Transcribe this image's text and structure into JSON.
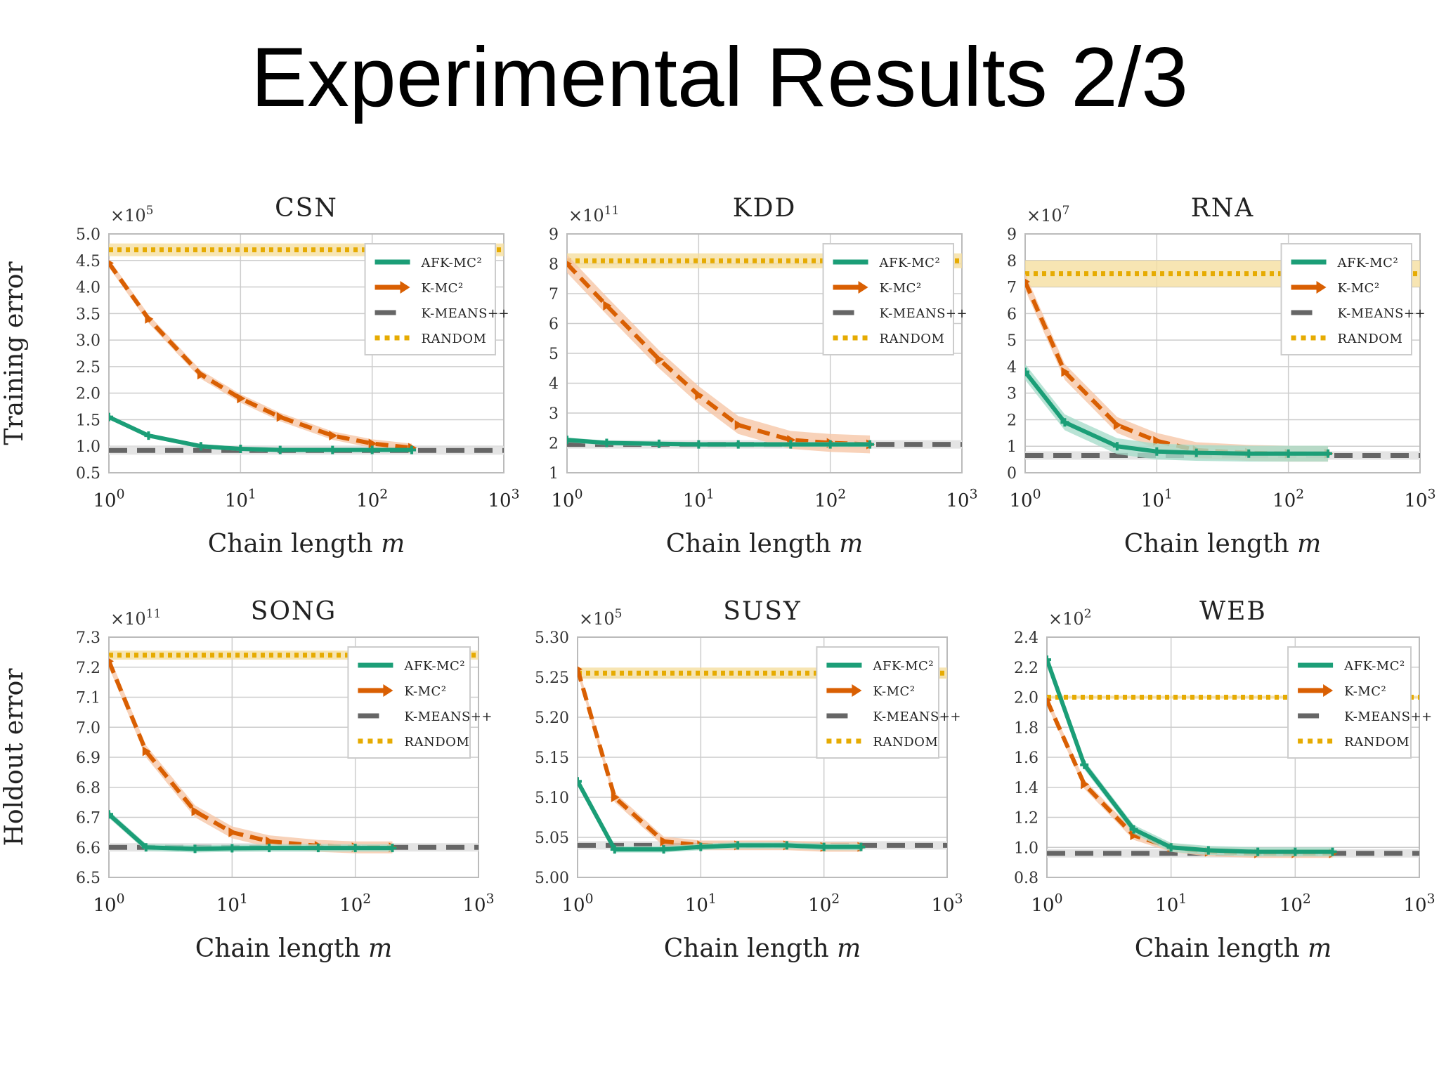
{
  "slide": {
    "title": "Experimental Results 2/3"
  },
  "colors": {
    "afk": "#1b9e77",
    "kmc": "#d95f02",
    "kmeans": "#666666",
    "random": "#e6ab02",
    "random_band": "#f5dfa0",
    "kmc_band": "#f6c7a8",
    "afk_band": "#a8dccb",
    "grid": "#cccccc"
  },
  "chart_data": [
    {
      "type": "line",
      "title": "CSN",
      "ylabel": "Training error",
      "xlabel": "Chain length m",
      "xscale": "log",
      "xlim": [
        1,
        1000
      ],
      "xticks": [
        "10^0",
        "10^1",
        "10^2",
        "10^3"
      ],
      "multiplier": "×10^5",
      "ylim": [
        0.5,
        5.0
      ],
      "yticks": [
        "0.5",
        "1.0",
        "1.5",
        "2.0",
        "2.5",
        "3.0",
        "3.5",
        "4.0",
        "4.5",
        "5.0"
      ],
      "legend_position": "top-right",
      "series": [
        {
          "name": "AFK-MC²",
          "x": [
            1,
            2,
            5,
            10,
            20,
            50,
            100,
            200
          ],
          "y": [
            1.55,
            1.2,
            1.0,
            0.95,
            0.93,
            0.93,
            0.93,
            0.93
          ],
          "band": 0.04
        },
        {
          "name": "K-MC²",
          "x": [
            1,
            2,
            5,
            10,
            20,
            50,
            100,
            200
          ],
          "y": [
            4.45,
            3.4,
            2.35,
            1.9,
            1.55,
            1.2,
            1.05,
            0.97
          ],
          "band": 0.08
        },
        {
          "name": "K-MEANS++",
          "y": 0.92,
          "band": 0.03
        },
        {
          "name": "RANDOM",
          "y": 4.7,
          "band": 0.12
        }
      ]
    },
    {
      "type": "line",
      "title": "KDD",
      "ylabel": "",
      "xlabel": "Chain length m",
      "xscale": "log",
      "xlim": [
        1,
        1000
      ],
      "xticks": [
        "10^0",
        "10^1",
        "10^2",
        "10^3"
      ],
      "multiplier": "×10^11",
      "ylim": [
        1,
        9
      ],
      "yticks": [
        "1",
        "2",
        "3",
        "4",
        "5",
        "6",
        "7",
        "8",
        "9"
      ],
      "legend_position": "top-right",
      "series": [
        {
          "name": "AFK-MC²",
          "x": [
            1,
            2,
            5,
            10,
            20,
            50,
            100,
            200
          ],
          "y": [
            2.1,
            2.0,
            1.97,
            1.95,
            1.95,
            1.95,
            1.95,
            1.95
          ],
          "band": 0.08
        },
        {
          "name": "K-MC²",
          "x": [
            1,
            2,
            5,
            10,
            20,
            50,
            100,
            200
          ],
          "y": [
            8.0,
            6.6,
            4.8,
            3.6,
            2.6,
            2.1,
            2.0,
            1.95
          ],
          "band": 0.3
        },
        {
          "name": "K-MEANS++",
          "y": 1.95,
          "band": 0.05
        },
        {
          "name": "RANDOM",
          "y": 8.1,
          "band": 0.25
        }
      ]
    },
    {
      "type": "line",
      "title": "RNA",
      "ylabel": "",
      "xlabel": "Chain length m",
      "xscale": "log",
      "xlim": [
        1,
        1000
      ],
      "xticks": [
        "10^0",
        "10^1",
        "10^2",
        "10^3"
      ],
      "multiplier": "×10^7",
      "ylim": [
        0,
        9
      ],
      "yticks": [
        "0",
        "1",
        "2",
        "3",
        "4",
        "5",
        "6",
        "7",
        "8",
        "9"
      ],
      "legend_position": "top-right",
      "series": [
        {
          "name": "AFK-MC²",
          "x": [
            1,
            2,
            5,
            10,
            20,
            50,
            100,
            200
          ],
          "y": [
            3.8,
            1.9,
            1.0,
            0.8,
            0.75,
            0.72,
            0.72,
            0.72
          ],
          "band": 0.3
        },
        {
          "name": "K-MC²",
          "x": [
            1,
            2,
            5,
            10,
            20,
            50,
            100,
            200
          ],
          "y": [
            7.2,
            3.8,
            1.8,
            1.2,
            0.85,
            0.75,
            0.72,
            0.72
          ],
          "band": 0.3
        },
        {
          "name": "K-MEANS++",
          "y": 0.65,
          "band": 0.06
        },
        {
          "name": "RANDOM",
          "y": 7.5,
          "band": 0.5
        }
      ]
    },
    {
      "type": "line",
      "title": "SONG",
      "ylabel": "Holdout error",
      "xlabel": "Chain length m",
      "xscale": "log",
      "xlim": [
        1,
        1000
      ],
      "xticks": [
        "10^0",
        "10^1",
        "10^2",
        "10^3"
      ],
      "multiplier": "×10^11",
      "ylim": [
        6.5,
        7.3
      ],
      "yticks": [
        "6.5",
        "6.6",
        "6.7",
        "6.8",
        "6.9",
        "7.0",
        "7.1",
        "7.2",
        "7.3"
      ],
      "legend_position": "top-right",
      "series": [
        {
          "name": "AFK-MC²",
          "x": [
            1,
            2,
            5,
            10,
            20,
            50,
            100,
            200
          ],
          "y": [
            6.71,
            6.6,
            6.595,
            6.597,
            6.598,
            6.598,
            6.598,
            6.598
          ],
          "band": 0.012
        },
        {
          "name": "K-MC²",
          "x": [
            1,
            2,
            5,
            10,
            20,
            50,
            100,
            200
          ],
          "y": [
            7.22,
            6.92,
            6.72,
            6.65,
            6.62,
            6.605,
            6.6,
            6.6
          ],
          "band": 0.02
        },
        {
          "name": "K-MEANS++",
          "y": 6.6,
          "band": 0.008
        },
        {
          "name": "RANDOM",
          "y": 7.24,
          "band": 0.015
        }
      ]
    },
    {
      "type": "line",
      "title": "SUSY",
      "ylabel": "",
      "xlabel": "Chain length m",
      "xscale": "log",
      "xlim": [
        1,
        1000
      ],
      "xticks": [
        "10^0",
        "10^1",
        "10^2",
        "10^3"
      ],
      "multiplier": "×10^5",
      "ylim": [
        5.0,
        5.3
      ],
      "yticks": [
        "5.00",
        "5.05",
        "5.10",
        "5.15",
        "5.20",
        "5.25",
        "5.30"
      ],
      "legend_position": "top-right",
      "series": [
        {
          "name": "AFK-MC²",
          "x": [
            1,
            2,
            5,
            10,
            20,
            50,
            100,
            200
          ],
          "y": [
            5.12,
            5.035,
            5.035,
            5.038,
            5.04,
            5.04,
            5.038,
            5.038
          ],
          "band": 0.004
        },
        {
          "name": "K-MC²",
          "x": [
            1,
            2,
            5,
            10,
            20,
            50,
            100,
            200
          ],
          "y": [
            5.26,
            5.1,
            5.045,
            5.04,
            5.04,
            5.04,
            5.038,
            5.038
          ],
          "band": 0.006
        },
        {
          "name": "K-MEANS++",
          "y": 5.04,
          "band": 0.005
        },
        {
          "name": "RANDOM",
          "y": 5.255,
          "band": 0.007
        }
      ]
    },
    {
      "type": "line",
      "title": "WEB",
      "ylabel": "",
      "xlabel": "Chain length m",
      "xscale": "log",
      "xlim": [
        1,
        1000
      ],
      "xticks": [
        "10^0",
        "10^1",
        "10^2",
        "10^3"
      ],
      "multiplier": "×10^2",
      "ylim": [
        0.8,
        2.4
      ],
      "yticks": [
        "0.8",
        "1.0",
        "1.2",
        "1.4",
        "1.6",
        "1.8",
        "2.0",
        "2.2",
        "2.4"
      ],
      "legend_position": "top-right",
      "series": [
        {
          "name": "AFK-MC²",
          "x": [
            1,
            2,
            5,
            10,
            20,
            50,
            100,
            200
          ],
          "y": [
            2.25,
            1.55,
            1.12,
            1.0,
            0.98,
            0.97,
            0.97,
            0.97
          ],
          "band": 0.03
        },
        {
          "name": "K-MC²",
          "x": [
            1,
            2,
            5,
            10,
            20,
            50,
            100,
            200
          ],
          "y": [
            1.98,
            1.42,
            1.08,
            1.0,
            0.97,
            0.96,
            0.96,
            0.96
          ],
          "band": 0.03
        },
        {
          "name": "K-MEANS++",
          "y": 0.96,
          "band": 0.01
        },
        {
          "name": "RANDOM",
          "y": 2.0,
          "band": 0.01
        }
      ]
    }
  ]
}
